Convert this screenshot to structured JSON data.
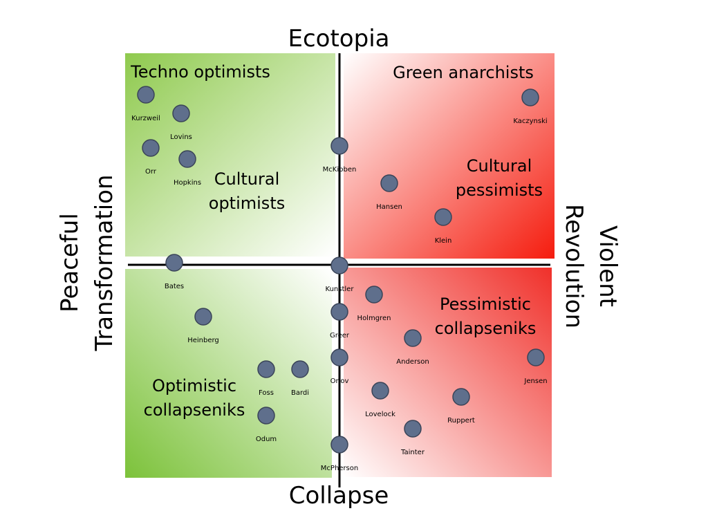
{
  "axes": {
    "top": "Ecotopia",
    "bottom": "Collapse",
    "left": [
      "Peaceful",
      "Transformation"
    ],
    "right": [
      "Violent",
      "Revolution"
    ]
  },
  "quadrant_labels": [
    {
      "lines": [
        "Techno optimists"
      ]
    },
    {
      "lines": [
        "Cultural",
        "optimists"
      ]
    },
    {
      "lines": [
        "Green anarchists"
      ]
    },
    {
      "lines": [
        "Cultural",
        "pessimists"
      ]
    },
    {
      "lines": [
        "Optimistic",
        "collapseniks"
      ]
    },
    {
      "lines": [
        "Pessimistic",
        "collapseniks"
      ]
    }
  ],
  "people": [
    "Kurzweil",
    "Lovins",
    "Orr",
    "Hopkins",
    "McKibben",
    "Kaczynski",
    "Hansen",
    "Klein",
    "Bates",
    "Kunstler",
    "Holmgren",
    "Greer",
    "Heinberg",
    "Anderson",
    "Jensen",
    "Orlov",
    "Foss",
    "Bardi",
    "Lovelock",
    "Ruppert",
    "Odum",
    "Tainter",
    "McPherson"
  ]
}
